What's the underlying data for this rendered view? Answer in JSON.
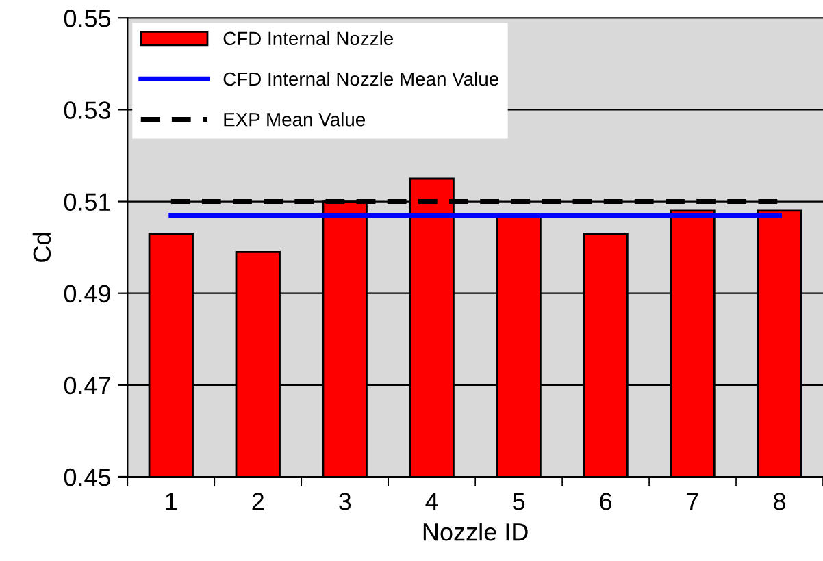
{
  "chart_data": {
    "type": "bar",
    "xlabel": "Nozzle ID",
    "ylabel": "Cd",
    "categories": [
      "1",
      "2",
      "3",
      "4",
      "5",
      "6",
      "7",
      "8"
    ],
    "series": [
      {
        "name": "CFD Internal Nozzle",
        "color": "#ff0000",
        "values": [
          0.503,
          0.499,
          0.51,
          0.515,
          0.507,
          0.503,
          0.508,
          0.508
        ]
      },
      {
        "name": "CFD Internal Nozzle Mean Value",
        "type": "line",
        "color": "#0000ff",
        "line_style": "solid",
        "values": [
          0.507,
          0.507,
          0.507,
          0.507,
          0.507,
          0.507,
          0.507,
          0.507
        ]
      },
      {
        "name": "EXP Mean Value",
        "type": "line",
        "color": "#000000",
        "line_style": "dashed",
        "values": [
          0.51,
          0.51,
          0.51,
          0.51,
          0.51,
          0.51,
          0.51,
          0.51
        ]
      }
    ],
    "ylim": [
      0.45,
      0.55
    ],
    "yticks": [
      0.45,
      0.47,
      0.49,
      0.51,
      0.53,
      0.55
    ],
    "grid": "y",
    "legend": "top left",
    "marker": "none"
  }
}
